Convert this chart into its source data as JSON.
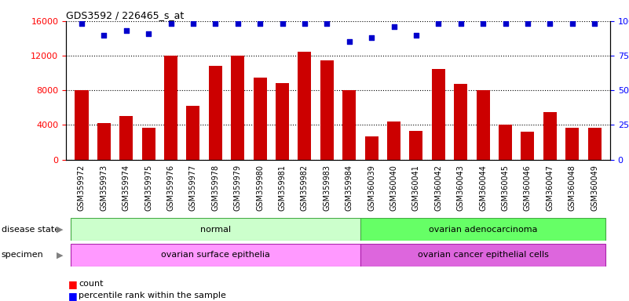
{
  "title": "GDS3592 / 226465_s_at",
  "samples": [
    "GSM359972",
    "GSM359973",
    "GSM359974",
    "GSM359975",
    "GSM359976",
    "GSM359977",
    "GSM359978",
    "GSM359979",
    "GSM359980",
    "GSM359981",
    "GSM359982",
    "GSM359983",
    "GSM359984",
    "GSM360039",
    "GSM360040",
    "GSM360041",
    "GSM360042",
    "GSM360043",
    "GSM360044",
    "GSM360045",
    "GSM360046",
    "GSM360047",
    "GSM360048",
    "GSM360049"
  ],
  "counts": [
    8000,
    4200,
    5000,
    3700,
    12000,
    6200,
    10800,
    12000,
    9500,
    8800,
    12500,
    11500,
    8000,
    2700,
    4400,
    3300,
    10500,
    8700,
    8000,
    4000,
    3200,
    5500,
    3700,
    3700
  ],
  "percentile_ranks": [
    98,
    90,
    93,
    91,
    98,
    98,
    98,
    98,
    98,
    98,
    98,
    98,
    85,
    88,
    96,
    90,
    98,
    98,
    98,
    98,
    98,
    98,
    98,
    98
  ],
  "bar_color": "#cc0000",
  "dot_color": "#0000cc",
  "ylim_left": [
    0,
    16000
  ],
  "ylim_right": [
    0,
    100
  ],
  "yticks_left": [
    0,
    4000,
    8000,
    12000,
    16000
  ],
  "yticks_right": [
    0,
    25,
    50,
    75,
    100
  ],
  "groups": [
    {
      "label": "normal",
      "start": 0,
      "end": 12,
      "color": "#ccffcc"
    },
    {
      "label": "ovarian adenocarcinoma",
      "start": 13,
      "end": 23,
      "color": "#66ff66"
    }
  ],
  "specimens": [
    {
      "label": "ovarian surface epithelia",
      "start": 0,
      "end": 12,
      "color": "#ff99ff"
    },
    {
      "label": "ovarian cancer epithelial cells",
      "start": 13,
      "end": 23,
      "color": "#dd66dd"
    }
  ],
  "disease_state_label": "disease state",
  "specimen_label": "specimen",
  "legend_count_label": "count",
  "legend_pct_label": "percentile rank within the sample",
  "bar_width": 0.6,
  "xticklabel_fontsize": 7,
  "ytick_fontsize": 8,
  "title_fontsize": 9
}
